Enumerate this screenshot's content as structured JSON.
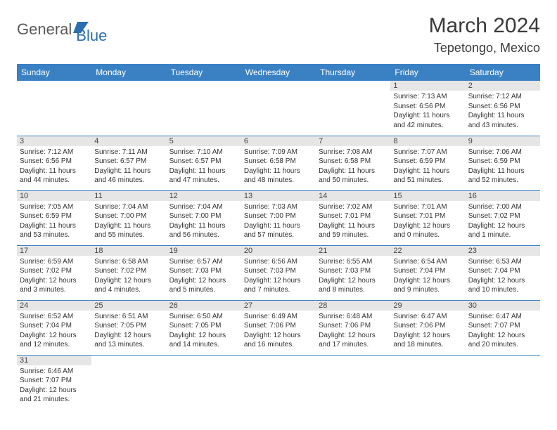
{
  "logo": {
    "text1": "General",
    "text2": "Blue"
  },
  "title": "March 2024",
  "location": "Tepetongo, Mexico",
  "colors": {
    "header_bg": "#3a81c4",
    "header_fg": "#ffffff",
    "daynum_bg": "#e6e6e6",
    "border": "#3a81c4",
    "logo_gray": "#5a5a5a",
    "logo_blue": "#2b6fb0"
  },
  "weekdays": [
    "Sunday",
    "Monday",
    "Tuesday",
    "Wednesday",
    "Thursday",
    "Friday",
    "Saturday"
  ],
  "weeks": [
    [
      null,
      null,
      null,
      null,
      null,
      {
        "d": "1",
        "sr": "Sunrise: 7:13 AM",
        "ss": "Sunset: 6:56 PM",
        "dl1": "Daylight: 11 hours",
        "dl2": "and 42 minutes."
      },
      {
        "d": "2",
        "sr": "Sunrise: 7:12 AM",
        "ss": "Sunset: 6:56 PM",
        "dl1": "Daylight: 11 hours",
        "dl2": "and 43 minutes."
      }
    ],
    [
      {
        "d": "3",
        "sr": "Sunrise: 7:12 AM",
        "ss": "Sunset: 6:56 PM",
        "dl1": "Daylight: 11 hours",
        "dl2": "and 44 minutes."
      },
      {
        "d": "4",
        "sr": "Sunrise: 7:11 AM",
        "ss": "Sunset: 6:57 PM",
        "dl1": "Daylight: 11 hours",
        "dl2": "and 46 minutes."
      },
      {
        "d": "5",
        "sr": "Sunrise: 7:10 AM",
        "ss": "Sunset: 6:57 PM",
        "dl1": "Daylight: 11 hours",
        "dl2": "and 47 minutes."
      },
      {
        "d": "6",
        "sr": "Sunrise: 7:09 AM",
        "ss": "Sunset: 6:58 PM",
        "dl1": "Daylight: 11 hours",
        "dl2": "and 48 minutes."
      },
      {
        "d": "7",
        "sr": "Sunrise: 7:08 AM",
        "ss": "Sunset: 6:58 PM",
        "dl1": "Daylight: 11 hours",
        "dl2": "and 50 minutes."
      },
      {
        "d": "8",
        "sr": "Sunrise: 7:07 AM",
        "ss": "Sunset: 6:59 PM",
        "dl1": "Daylight: 11 hours",
        "dl2": "and 51 minutes."
      },
      {
        "d": "9",
        "sr": "Sunrise: 7:06 AM",
        "ss": "Sunset: 6:59 PM",
        "dl1": "Daylight: 11 hours",
        "dl2": "and 52 minutes."
      }
    ],
    [
      {
        "d": "10",
        "sr": "Sunrise: 7:05 AM",
        "ss": "Sunset: 6:59 PM",
        "dl1": "Daylight: 11 hours",
        "dl2": "and 53 minutes."
      },
      {
        "d": "11",
        "sr": "Sunrise: 7:04 AM",
        "ss": "Sunset: 7:00 PM",
        "dl1": "Daylight: 11 hours",
        "dl2": "and 55 minutes."
      },
      {
        "d": "12",
        "sr": "Sunrise: 7:04 AM",
        "ss": "Sunset: 7:00 PM",
        "dl1": "Daylight: 11 hours",
        "dl2": "and 56 minutes."
      },
      {
        "d": "13",
        "sr": "Sunrise: 7:03 AM",
        "ss": "Sunset: 7:00 PM",
        "dl1": "Daylight: 11 hours",
        "dl2": "and 57 minutes."
      },
      {
        "d": "14",
        "sr": "Sunrise: 7:02 AM",
        "ss": "Sunset: 7:01 PM",
        "dl1": "Daylight: 11 hours",
        "dl2": "and 59 minutes."
      },
      {
        "d": "15",
        "sr": "Sunrise: 7:01 AM",
        "ss": "Sunset: 7:01 PM",
        "dl1": "Daylight: 12 hours",
        "dl2": "and 0 minutes."
      },
      {
        "d": "16",
        "sr": "Sunrise: 7:00 AM",
        "ss": "Sunset: 7:02 PM",
        "dl1": "Daylight: 12 hours",
        "dl2": "and 1 minute."
      }
    ],
    [
      {
        "d": "17",
        "sr": "Sunrise: 6:59 AM",
        "ss": "Sunset: 7:02 PM",
        "dl1": "Daylight: 12 hours",
        "dl2": "and 3 minutes."
      },
      {
        "d": "18",
        "sr": "Sunrise: 6:58 AM",
        "ss": "Sunset: 7:02 PM",
        "dl1": "Daylight: 12 hours",
        "dl2": "and 4 minutes."
      },
      {
        "d": "19",
        "sr": "Sunrise: 6:57 AM",
        "ss": "Sunset: 7:03 PM",
        "dl1": "Daylight: 12 hours",
        "dl2": "and 5 minutes."
      },
      {
        "d": "20",
        "sr": "Sunrise: 6:56 AM",
        "ss": "Sunset: 7:03 PM",
        "dl1": "Daylight: 12 hours",
        "dl2": "and 7 minutes."
      },
      {
        "d": "21",
        "sr": "Sunrise: 6:55 AM",
        "ss": "Sunset: 7:03 PM",
        "dl1": "Daylight: 12 hours",
        "dl2": "and 8 minutes."
      },
      {
        "d": "22",
        "sr": "Sunrise: 6:54 AM",
        "ss": "Sunset: 7:04 PM",
        "dl1": "Daylight: 12 hours",
        "dl2": "and 9 minutes."
      },
      {
        "d": "23",
        "sr": "Sunrise: 6:53 AM",
        "ss": "Sunset: 7:04 PM",
        "dl1": "Daylight: 12 hours",
        "dl2": "and 10 minutes."
      }
    ],
    [
      {
        "d": "24",
        "sr": "Sunrise: 6:52 AM",
        "ss": "Sunset: 7:04 PM",
        "dl1": "Daylight: 12 hours",
        "dl2": "and 12 minutes."
      },
      {
        "d": "25",
        "sr": "Sunrise: 6:51 AM",
        "ss": "Sunset: 7:05 PM",
        "dl1": "Daylight: 12 hours",
        "dl2": "and 13 minutes."
      },
      {
        "d": "26",
        "sr": "Sunrise: 6:50 AM",
        "ss": "Sunset: 7:05 PM",
        "dl1": "Daylight: 12 hours",
        "dl2": "and 14 minutes."
      },
      {
        "d": "27",
        "sr": "Sunrise: 6:49 AM",
        "ss": "Sunset: 7:06 PM",
        "dl1": "Daylight: 12 hours",
        "dl2": "and 16 minutes."
      },
      {
        "d": "28",
        "sr": "Sunrise: 6:48 AM",
        "ss": "Sunset: 7:06 PM",
        "dl1": "Daylight: 12 hours",
        "dl2": "and 17 minutes."
      },
      {
        "d": "29",
        "sr": "Sunrise: 6:47 AM",
        "ss": "Sunset: 7:06 PM",
        "dl1": "Daylight: 12 hours",
        "dl2": "and 18 minutes."
      },
      {
        "d": "30",
        "sr": "Sunrise: 6:47 AM",
        "ss": "Sunset: 7:07 PM",
        "dl1": "Daylight: 12 hours",
        "dl2": "and 20 minutes."
      }
    ],
    [
      {
        "d": "31",
        "sr": "Sunrise: 6:46 AM",
        "ss": "Sunset: 7:07 PM",
        "dl1": "Daylight: 12 hours",
        "dl2": "and 21 minutes."
      },
      null,
      null,
      null,
      null,
      null,
      null
    ]
  ]
}
